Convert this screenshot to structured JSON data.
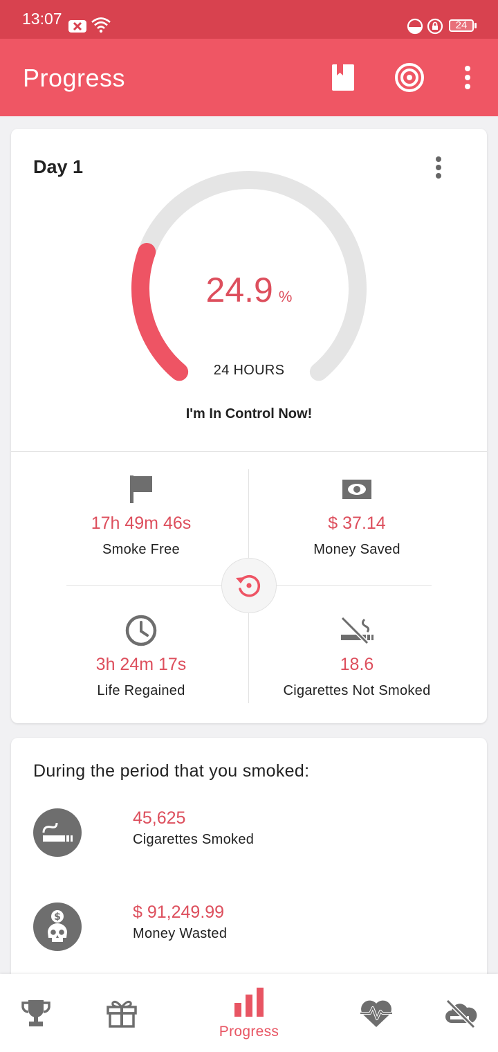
{
  "status_bar": {
    "time": "13:07",
    "battery": "24"
  },
  "app_bar": {
    "title": "Progress"
  },
  "progress_card": {
    "day_title": "Day 1",
    "percent": "24.9",
    "percent_unit": "%",
    "percent_fraction": 0.249,
    "duration_label": "24 HOURS",
    "motto": "I'm In Control Now!",
    "stats": {
      "smoke_free": {
        "value": "17h 49m 46s",
        "label": "Smoke Free"
      },
      "money_saved": {
        "value": "$ 37.14",
        "label": "Money Saved"
      },
      "life_regained": {
        "value": "3h 24m 17s",
        "label": "Life Regained"
      },
      "cigarettes_not_smoked": {
        "value": "18.6",
        "label": "Cigarettes Not Smoked"
      }
    }
  },
  "history_card": {
    "title": "During the period that you smoked:",
    "items": [
      {
        "value": "45,625",
        "label": "Cigarettes Smoked",
        "icon": "cigarette-icon"
      },
      {
        "value": "$ 91,249.99",
        "label": "Money Wasted",
        "icon": "skull-money-icon"
      }
    ]
  },
  "bottom_nav": {
    "active_label": "Progress"
  },
  "colors": {
    "accent": "#ef5664",
    "accent_text": "#dd4f5d",
    "status_bar": "#d8424f",
    "icon_gray": "#6e6e6e"
  }
}
